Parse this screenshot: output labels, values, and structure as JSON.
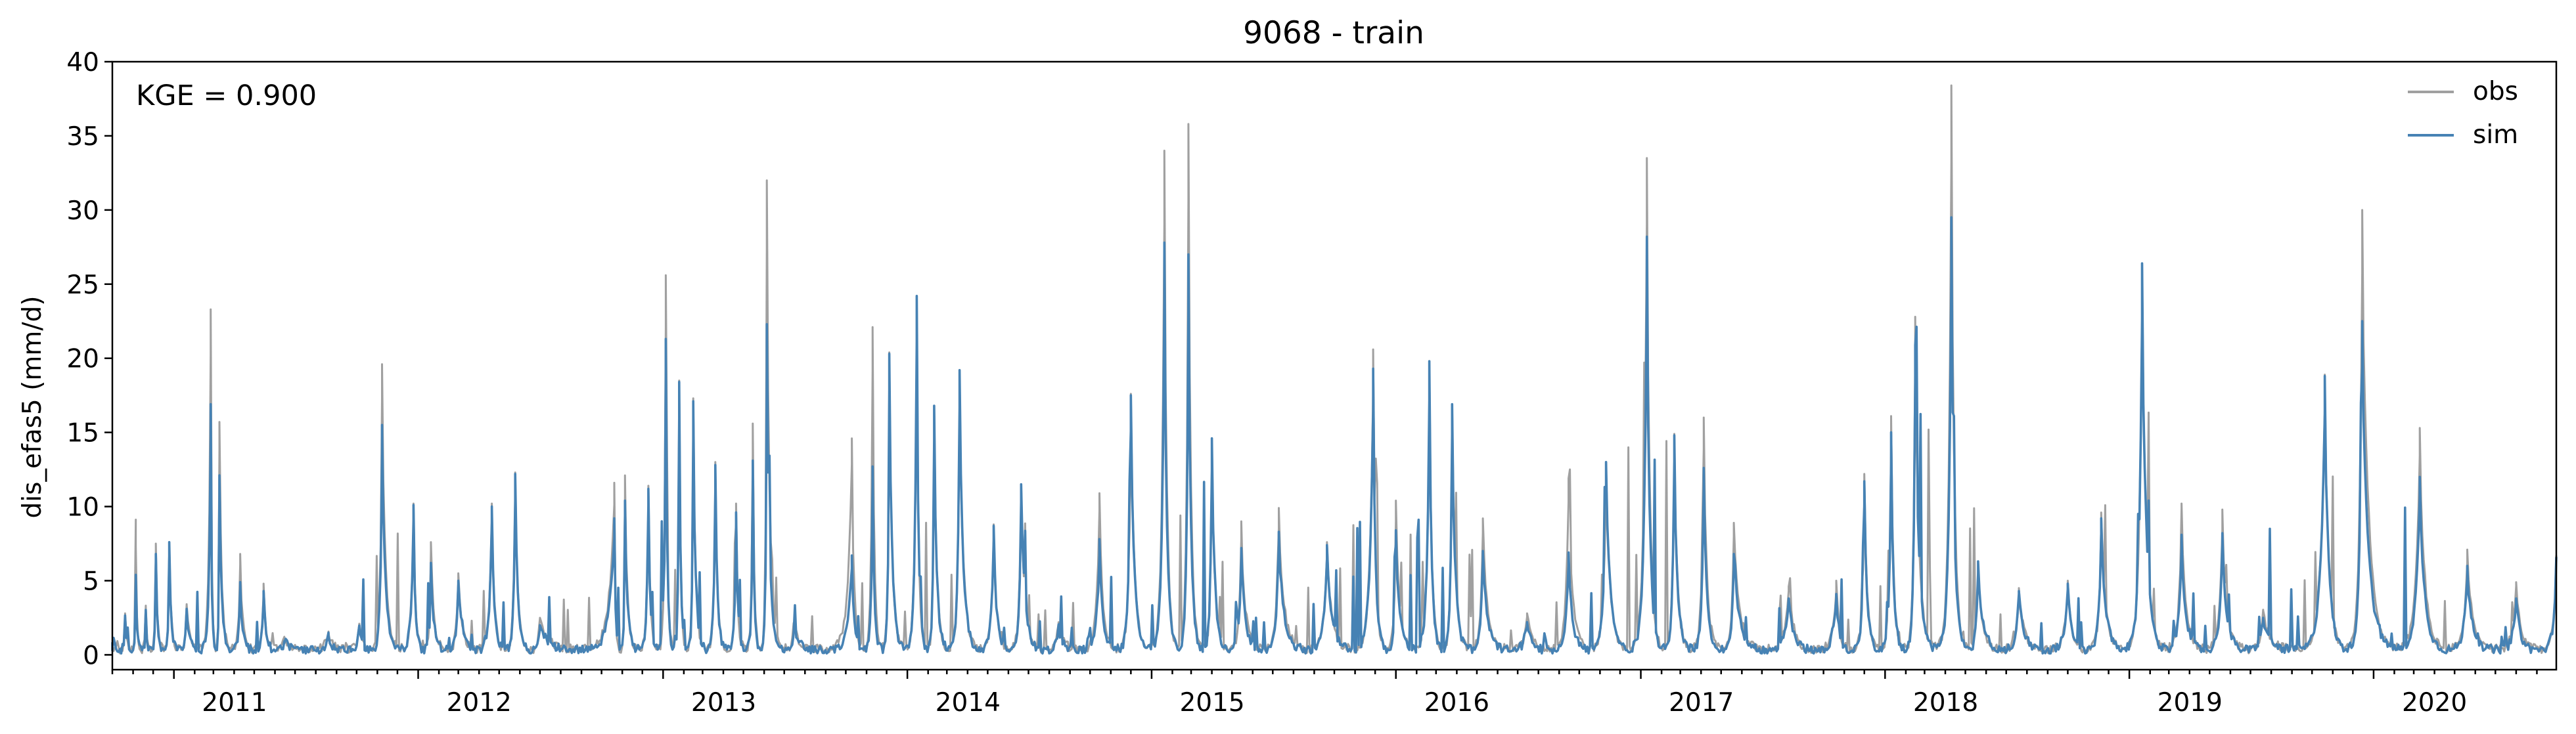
{
  "chart_data": {
    "type": "line",
    "title": "9068 - train",
    "xlabel": "",
    "ylabel": "dis_efas5 (mm/d)",
    "annotation": "KGE = 0.900",
    "xlim": [
      "2010-10-01",
      "2020-09-30"
    ],
    "ylim": [
      -1,
      40
    ],
    "y_ticks": [
      "0",
      "5",
      "10",
      "15",
      "20",
      "25",
      "30",
      "35",
      "40"
    ],
    "x_ticks": [
      "2011",
      "2012",
      "2013",
      "2014",
      "2015",
      "2016",
      "2017",
      "2018",
      "2019",
      "2020"
    ],
    "grid": false,
    "legend_position": "top-right",
    "series": [
      {
        "name": "obs",
        "color": "#a0a0a0",
        "points": [
          [
            "2010-10-01",
            0.4
          ],
          [
            "2010-10-20",
            2.8
          ],
          [
            "2010-11-05",
            7.3
          ],
          [
            "2010-11-20",
            3.2
          ],
          [
            "2010-12-05",
            7.5
          ],
          [
            "2010-12-25",
            7.6
          ],
          [
            "2011-01-20",
            3.4
          ],
          [
            "2011-02-25",
            23.3
          ],
          [
            "2011-03-10",
            15.7
          ],
          [
            "2011-04-10",
            6.8
          ],
          [
            "2011-05-15",
            4.8
          ],
          [
            "2011-06-15",
            1.0
          ],
          [
            "2011-08-20",
            1.5
          ],
          [
            "2011-10-05",
            2.1
          ],
          [
            "2011-11-08",
            19.6
          ],
          [
            "2011-12-25",
            10.2
          ],
          [
            "2012-01-20",
            7.6
          ],
          [
            "2012-03-01",
            5.5
          ],
          [
            "2012-04-20",
            10.2
          ],
          [
            "2012-05-25",
            12.3
          ],
          [
            "2012-07-01",
            2.5
          ],
          [
            "2012-10-20",
            11.6
          ],
          [
            "2012-11-05",
            12.1
          ],
          [
            "2012-12-10",
            11.4
          ],
          [
            "2013-01-05",
            25.6
          ],
          [
            "2013-01-25",
            18.5
          ],
          [
            "2013-02-15",
            17.3
          ],
          [
            "2013-03-20",
            13.0
          ],
          [
            "2013-04-20",
            10.2
          ],
          [
            "2013-05-15",
            15.6
          ],
          [
            "2013-06-05",
            32.0
          ],
          [
            "2013-07-15",
            1.8
          ],
          [
            "2013-10-10",
            14.6
          ],
          [
            "2013-11-10",
            22.1
          ],
          [
            "2013-12-05",
            20.4
          ],
          [
            "2014-01-15",
            24.2
          ],
          [
            "2014-02-10",
            16.8
          ],
          [
            "2014-03-20",
            19.2
          ],
          [
            "2014-05-10",
            8.8
          ],
          [
            "2014-06-20",
            11.5
          ],
          [
            "2014-08-15",
            2.2
          ],
          [
            "2014-10-15",
            10.9
          ],
          [
            "2014-12-01",
            17.6
          ],
          [
            "2015-01-20",
            34.0
          ],
          [
            "2015-02-25",
            35.8
          ],
          [
            "2015-04-01",
            14.6
          ],
          [
            "2015-05-15",
            9.0
          ],
          [
            "2015-07-10",
            9.9
          ],
          [
            "2015-09-20",
            7.6
          ],
          [
            "2015-11-28",
            20.6
          ],
          [
            "2016-01-01",
            10.4
          ],
          [
            "2016-02-20",
            19.8
          ],
          [
            "2016-03-25",
            16.9
          ],
          [
            "2016-05-10",
            9.2
          ],
          [
            "2016-07-15",
            2.8
          ],
          [
            "2016-09-15",
            11.9
          ],
          [
            "2016-11-10",
            13.0
          ],
          [
            "2017-01-10",
            33.5
          ],
          [
            "2017-02-20",
            14.9
          ],
          [
            "2017-04-05",
            16.0
          ],
          [
            "2017-05-20",
            8.9
          ],
          [
            "2017-08-10",
            4.6
          ],
          [
            "2017-10-20",
            5.0
          ],
          [
            "2017-12-01",
            12.2
          ],
          [
            "2018-01-10",
            16.1
          ],
          [
            "2018-02-15",
            22.8
          ],
          [
            "2018-04-10",
            38.4
          ],
          [
            "2018-05-20",
            6.3
          ],
          [
            "2018-07-20",
            4.5
          ],
          [
            "2018-10-01",
            5.0
          ],
          [
            "2018-11-20",
            9.6
          ],
          [
            "2019-01-20",
            26.4
          ],
          [
            "2019-03-20",
            10.2
          ],
          [
            "2019-05-20",
            9.8
          ],
          [
            "2019-07-20",
            3.0
          ],
          [
            "2019-10-20",
            18.9
          ],
          [
            "2019-12-15",
            30.0
          ],
          [
            "2020-03-10",
            15.3
          ],
          [
            "2020-05-20",
            7.1
          ],
          [
            "2020-08-01",
            4.9
          ],
          [
            "2020-09-30",
            6.7
          ]
        ]
      },
      {
        "name": "sim",
        "color": "#4682b4",
        "points": [
          [
            "2010-10-01",
            0.3
          ],
          [
            "2010-10-20",
            2.6
          ],
          [
            "2010-11-05",
            5.4
          ],
          [
            "2010-11-20",
            3.0
          ],
          [
            "2010-12-05",
            6.8
          ],
          [
            "2010-12-25",
            7.6
          ],
          [
            "2011-01-20",
            3.1
          ],
          [
            "2011-02-25",
            16.9
          ],
          [
            "2011-03-10",
            12.1
          ],
          [
            "2011-04-10",
            4.9
          ],
          [
            "2011-05-15",
            4.3
          ],
          [
            "2011-06-15",
            0.8
          ],
          [
            "2011-08-20",
            1.3
          ],
          [
            "2011-10-05",
            1.8
          ],
          [
            "2011-11-08",
            15.5
          ],
          [
            "2011-12-25",
            10.1
          ],
          [
            "2012-01-20",
            6.2
          ],
          [
            "2012-03-01",
            5.0
          ],
          [
            "2012-04-20",
            10.0
          ],
          [
            "2012-05-25",
            12.2
          ],
          [
            "2012-07-01",
            2.0
          ],
          [
            "2012-10-20",
            9.2
          ],
          [
            "2012-11-05",
            10.4
          ],
          [
            "2012-12-10",
            11.2
          ],
          [
            "2013-01-05",
            21.3
          ],
          [
            "2013-01-25",
            18.4
          ],
          [
            "2013-02-15",
            17.1
          ],
          [
            "2013-03-20",
            12.8
          ],
          [
            "2013-04-20",
            9.6
          ],
          [
            "2013-05-15",
            13.1
          ],
          [
            "2013-06-05",
            22.3
          ],
          [
            "2013-07-15",
            1.4
          ],
          [
            "2013-10-10",
            6.7
          ],
          [
            "2013-11-10",
            12.7
          ],
          [
            "2013-12-05",
            20.3
          ],
          [
            "2014-01-15",
            24.2
          ],
          [
            "2014-02-10",
            16.8
          ],
          [
            "2014-03-20",
            19.2
          ],
          [
            "2014-05-10",
            8.7
          ],
          [
            "2014-06-20",
            11.5
          ],
          [
            "2014-08-15",
            1.8
          ],
          [
            "2014-10-15",
            7.8
          ],
          [
            "2014-12-01",
            17.5
          ],
          [
            "2015-01-20",
            27.8
          ],
          [
            "2015-02-25",
            27.0
          ],
          [
            "2015-04-01",
            14.6
          ],
          [
            "2015-05-15",
            7.2
          ],
          [
            "2015-07-10",
            8.3
          ],
          [
            "2015-09-20",
            7.4
          ],
          [
            "2015-11-28",
            19.3
          ],
          [
            "2016-01-01",
            8.4
          ],
          [
            "2016-02-20",
            19.8
          ],
          [
            "2016-03-25",
            16.9
          ],
          [
            "2016-05-10",
            7.0
          ],
          [
            "2016-07-15",
            2.2
          ],
          [
            "2016-09-15",
            6.9
          ],
          [
            "2016-11-10",
            13.0
          ],
          [
            "2017-01-10",
            28.2
          ],
          [
            "2017-02-20",
            14.8
          ],
          [
            "2017-04-05",
            12.6
          ],
          [
            "2017-05-20",
            6.8
          ],
          [
            "2017-08-10",
            3.8
          ],
          [
            "2017-10-20",
            4.1
          ],
          [
            "2017-12-01",
            11.7
          ],
          [
            "2018-01-10",
            15.0
          ],
          [
            "2018-02-15",
            20.9
          ],
          [
            "2018-04-10",
            29.5
          ],
          [
            "2018-05-20",
            6.3
          ],
          [
            "2018-07-20",
            4.3
          ],
          [
            "2018-10-01",
            4.8
          ],
          [
            "2018-11-20",
            9.2
          ],
          [
            "2019-01-20",
            26.4
          ],
          [
            "2019-03-20",
            8.1
          ],
          [
            "2019-05-20",
            8.2
          ],
          [
            "2019-07-20",
            2.5
          ],
          [
            "2019-10-20",
            18.8
          ],
          [
            "2019-12-15",
            22.5
          ],
          [
            "2020-03-10",
            12.0
          ],
          [
            "2020-05-20",
            6.0
          ],
          [
            "2020-08-01",
            3.8
          ],
          [
            "2020-09-30",
            6.6
          ]
        ]
      }
    ]
  }
}
